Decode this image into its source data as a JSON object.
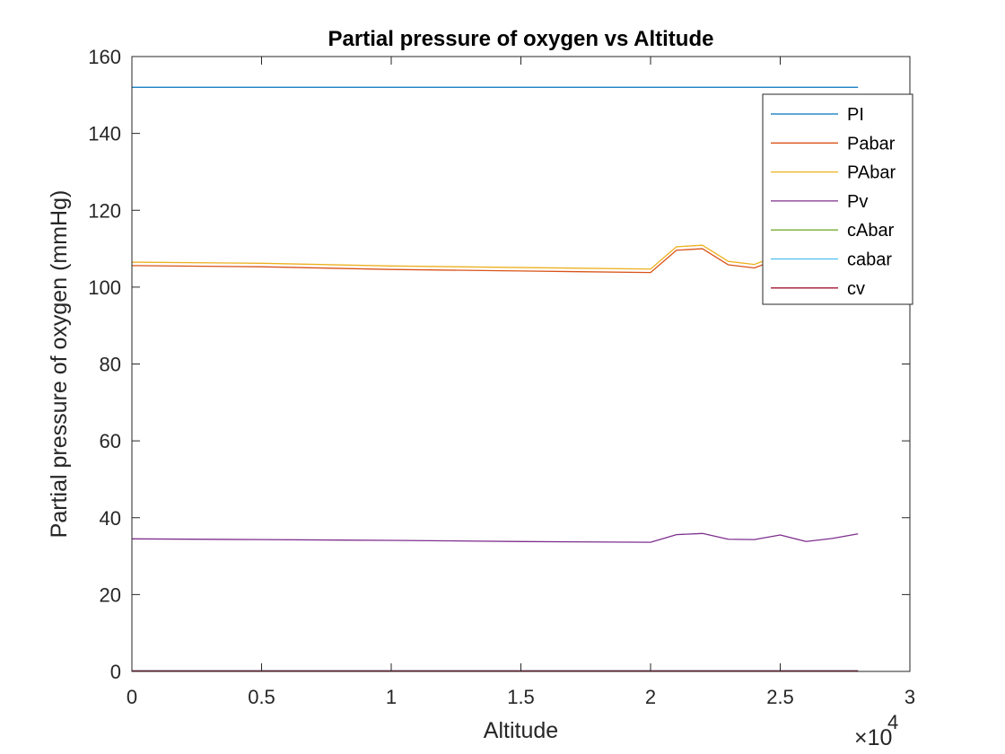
{
  "chart_data": {
    "type": "line",
    "title": "Partial pressure of oxygen vs Altitude",
    "xlabel": "Altitude",
    "ylabel": "Partial pressure of oxygen (mmHg)",
    "x_exponent_label": "×10",
    "x_exponent_power": "4",
    "xlim": [
      0,
      30000
    ],
    "ylim": [
      0,
      160
    ],
    "xticks": [
      0,
      5000,
      10000,
      15000,
      20000,
      25000,
      30000
    ],
    "xtick_labels": [
      "0",
      "0.5",
      "1",
      "1.5",
      "2",
      "2.5",
      "3"
    ],
    "yticks": [
      0,
      20,
      40,
      60,
      80,
      100,
      120,
      140,
      160
    ],
    "ytick_labels": [
      "0",
      "20",
      "40",
      "60",
      "80",
      "100",
      "120",
      "140",
      "160"
    ],
    "legend_position": "top-right",
    "x": [
      0,
      5000,
      10000,
      15000,
      20000,
      21000,
      22000,
      23000,
      24000,
      25000,
      26000,
      27000,
      28000
    ],
    "series": [
      {
        "name": "PI",
        "color": "#0072BD",
        "values": [
          152,
          152,
          152,
          152,
          152,
          152,
          152,
          152,
          152,
          152,
          152,
          152,
          152
        ]
      },
      {
        "name": "Pabar",
        "color": "#D95319",
        "values": [
          105.6,
          105.3,
          104.6,
          104.2,
          103.8,
          109.6,
          110.0,
          105.8,
          105.0,
          107.5,
          106.5,
          106.2,
          107.0
        ]
      },
      {
        "name": "PAbar",
        "color": "#EDB120",
        "values": [
          106.5,
          106.2,
          105.5,
          105.1,
          104.7,
          110.5,
          110.9,
          106.7,
          105.9,
          108.4,
          107.4,
          107.1,
          107.9
        ]
      },
      {
        "name": "Pv",
        "color": "#7E2F8E",
        "values": [
          34.5,
          34.3,
          34.1,
          33.8,
          33.6,
          35.6,
          35.9,
          34.4,
          34.3,
          35.5,
          33.8,
          34.6,
          35.8
        ]
      },
      {
        "name": "cAbar",
        "color": "#77AC30",
        "values": [
          0.2,
          0.2,
          0.2,
          0.2,
          0.2,
          0.2,
          0.2,
          0.2,
          0.2,
          0.2,
          0.2,
          0.2,
          0.2
        ]
      },
      {
        "name": "cabar",
        "color": "#4DBEEE",
        "values": [
          0.2,
          0.2,
          0.2,
          0.2,
          0.2,
          0.2,
          0.2,
          0.2,
          0.2,
          0.2,
          0.2,
          0.2,
          0.2
        ]
      },
      {
        "name": "cv",
        "color": "#A2142F",
        "values": [
          0.15,
          0.15,
          0.15,
          0.15,
          0.15,
          0.15,
          0.15,
          0.15,
          0.15,
          0.15,
          0.15,
          0.15,
          0.15
        ]
      }
    ]
  }
}
